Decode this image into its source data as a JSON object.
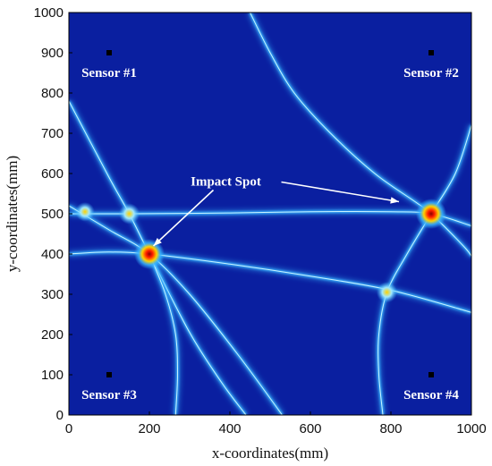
{
  "chart_data": {
    "type": "heatmap",
    "title": "",
    "xlabel": "x-coordinates(mm)",
    "ylabel": "y-coordinates(mm)",
    "xlim": [
      0,
      1000
    ],
    "ylim": [
      0,
      1000
    ],
    "xticks": [
      "0",
      "200",
      "400",
      "600",
      "800",
      "1000"
    ],
    "yticks": [
      "0",
      "100",
      "200",
      "300",
      "400",
      "500",
      "600",
      "700",
      "800",
      "900",
      "1000"
    ],
    "grid": false,
    "legend": "none",
    "colors": {
      "background": "#0a1fa0",
      "line": "#37b3ff",
      "hot": "#ff1e00",
      "warm": "#ffd200",
      "marker": "#000000"
    },
    "sensors": [
      {
        "label": "Sensor #1",
        "x": 100,
        "y": 900
      },
      {
        "label": "Sensor #2",
        "x": 900,
        "y": 900
      },
      {
        "label": "Sensor #3",
        "x": 100,
        "y": 100
      },
      {
        "label": "Sensor #4",
        "x": 900,
        "y": 100
      }
    ],
    "hotspots": [
      {
        "x": 200,
        "y": 400,
        "intensity": 1.0
      },
      {
        "x": 900,
        "y": 500,
        "intensity": 1.0
      },
      {
        "x": 150,
        "y": 500,
        "intensity": 0.45
      },
      {
        "x": 790,
        "y": 305,
        "intensity": 0.45
      },
      {
        "x": 40,
        "y": 505,
        "intensity": 0.3
      }
    ],
    "annotation": {
      "text": "Impact Spot",
      "label_x": 390,
      "label_y": 570,
      "arrows_to": [
        {
          "x": 210,
          "y": 420
        },
        {
          "x": 820,
          "y": 530
        }
      ]
    },
    "curves": [
      {
        "name": "c1",
        "points": [
          [
            0,
            500
          ],
          [
            150,
            500
          ],
          [
            400,
            502
          ],
          [
            600,
            505
          ],
          [
            800,
            505
          ],
          [
            900,
            500
          ],
          [
            1000,
            470
          ]
        ]
      },
      {
        "name": "c2",
        "points": [
          [
            0,
            400
          ],
          [
            100,
            405
          ],
          [
            200,
            400
          ],
          [
            400,
            375
          ],
          [
            600,
            345
          ],
          [
            800,
            310
          ],
          [
            1000,
            255
          ]
        ]
      },
      {
        "name": "c3",
        "points": [
          [
            0,
            780
          ],
          [
            100,
            590
          ],
          [
            150,
            500
          ],
          [
            200,
            400
          ],
          [
            300,
            205
          ],
          [
            380,
            80
          ],
          [
            440,
            0
          ]
        ]
      },
      {
        "name": "c4",
        "points": [
          [
            0,
            520
          ],
          [
            100,
            460
          ],
          [
            200,
            400
          ],
          [
            300,
            300
          ],
          [
            420,
            150
          ],
          [
            530,
            0
          ]
        ]
      },
      {
        "name": "c5",
        "points": [
          [
            450,
            1000
          ],
          [
            500,
            900
          ],
          [
            560,
            800
          ],
          [
            650,
            700
          ],
          [
            760,
            600
          ],
          [
            860,
            530
          ],
          [
            900,
            500
          ],
          [
            980,
            420
          ],
          [
            1000,
            395
          ]
        ]
      },
      {
        "name": "c6",
        "points": [
          [
            1000,
            720
          ],
          [
            960,
            600
          ],
          [
            900,
            500
          ],
          [
            840,
            400
          ],
          [
            790,
            305
          ],
          [
            770,
            200
          ],
          [
            770,
            100
          ],
          [
            780,
            0
          ]
        ]
      },
      {
        "name": "c7",
        "points": [
          [
            200,
            400
          ],
          [
            240,
            300
          ],
          [
            265,
            200
          ],
          [
            270,
            100
          ],
          [
            265,
            0
          ]
        ]
      }
    ]
  }
}
